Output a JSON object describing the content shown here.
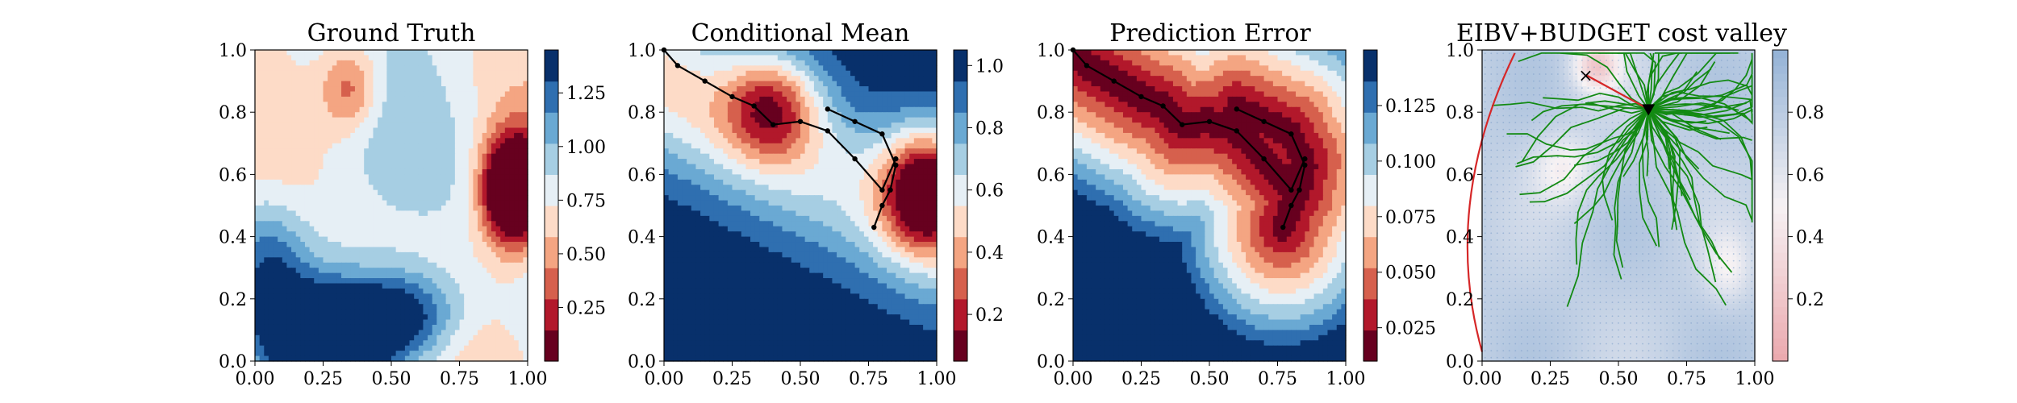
{
  "chart_data": [
    {
      "type": "heatmap",
      "title": "Ground Truth",
      "xlim": [
        0,
        1
      ],
      "ylim": [
        0,
        1
      ],
      "x_ticks": [
        "0.00",
        "0.25",
        "0.50",
        "0.75",
        "1.00"
      ],
      "y_ticks": [
        "0.0",
        "0.2",
        "0.4",
        "0.6",
        "0.8",
        "1.0"
      ],
      "colormap": "RdBu",
      "colorbar": {
        "range": [
          0.0,
          1.45
        ],
        "ticks": [
          "0.25",
          "0.50",
          "0.75",
          "1.00",
          "1.25"
        ]
      },
      "features": [
        {
          "kind": "low",
          "x": 0.95,
          "y": 0.55,
          "sx": 0.08,
          "sy": 0.12,
          "amp": -1.0
        },
        {
          "kind": "low",
          "x": 0.35,
          "y": 0.88,
          "sx": 0.08,
          "sy": 0.1,
          "amp": -0.35
        },
        {
          "kind": "high",
          "x": 0.25,
          "y": 0.08,
          "sx": 0.18,
          "sy": 0.12,
          "amp": 0.55
        },
        {
          "kind": "high",
          "x": 0.55,
          "y": 0.15,
          "sx": 0.15,
          "sy": 0.1,
          "amp": 0.45
        },
        {
          "kind": "high",
          "x": 0.05,
          "y": 0.3,
          "sx": 0.1,
          "sy": 0.15,
          "amp": 0.3
        }
      ]
    },
    {
      "type": "heatmap",
      "title": "Conditional Mean",
      "xlim": [
        0,
        1
      ],
      "ylim": [
        0,
        1
      ],
      "x_ticks": [
        "0.00",
        "0.25",
        "0.50",
        "0.75",
        "1.00"
      ],
      "y_ticks": [
        "0.0",
        "0.2",
        "0.4",
        "0.6",
        "0.8",
        "1.0"
      ],
      "colormap": "RdBu",
      "colorbar": {
        "range": [
          0.05,
          1.05
        ],
        "ticks": [
          "0.2",
          "0.4",
          "0.6",
          "0.8",
          "1.0"
        ]
      },
      "features": [
        {
          "kind": "low",
          "x": 0.97,
          "y": 0.55,
          "sx": 0.12,
          "sy": 0.14,
          "amp": -0.95
        },
        {
          "kind": "low",
          "x": 0.4,
          "y": 0.82,
          "sx": 0.12,
          "sy": 0.12,
          "amp": -0.55
        }
      ],
      "path_a": {
        "x": [
          0.0,
          0.05,
          0.15,
          0.25,
          0.33,
          0.4,
          0.5,
          0.6,
          0.7,
          0.8,
          0.85
        ],
        "y": [
          1.0,
          0.95,
          0.9,
          0.85,
          0.82,
          0.76,
          0.77,
          0.74,
          0.65,
          0.55,
          0.65
        ]
      },
      "path_b": {
        "x": [
          0.6,
          0.7,
          0.8,
          0.85,
          0.83,
          0.8,
          0.77
        ],
        "y": [
          0.81,
          0.77,
          0.73,
          0.63,
          0.55,
          0.5,
          0.43
        ]
      }
    },
    {
      "type": "heatmap",
      "title": "Prediction Error",
      "xlim": [
        0,
        1
      ],
      "ylim": [
        0,
        1
      ],
      "x_ticks": [
        "0.00",
        "0.25",
        "0.50",
        "0.75",
        "1.00"
      ],
      "y_ticks": [
        "0.0",
        "0.2",
        "0.4",
        "0.6",
        "0.8",
        "1.0"
      ],
      "colormap": "RdBu",
      "colorbar": {
        "range": [
          0.01,
          0.15
        ],
        "ticks": [
          "0.025",
          "0.050",
          "0.075",
          "0.100",
          "0.125"
        ]
      },
      "path_a": {
        "x": [
          0.0,
          0.05,
          0.15,
          0.25,
          0.33,
          0.4,
          0.5,
          0.6,
          0.7,
          0.8,
          0.85
        ],
        "y": [
          1.0,
          0.95,
          0.9,
          0.85,
          0.82,
          0.76,
          0.77,
          0.74,
          0.65,
          0.55,
          0.65
        ]
      },
      "path_b": {
        "x": [
          0.6,
          0.7,
          0.8,
          0.85,
          0.83,
          0.8,
          0.77
        ],
        "y": [
          0.81,
          0.77,
          0.73,
          0.63,
          0.55,
          0.5,
          0.43
        ]
      }
    },
    {
      "type": "heatmap",
      "title": "EIBV+BUDGET cost valley",
      "xlim": [
        0,
        1
      ],
      "ylim": [
        0,
        1
      ],
      "x_ticks": [
        "0.00",
        "0.25",
        "0.50",
        "0.75",
        "1.00"
      ],
      "y_ticks": [
        "0.0",
        "0.2",
        "0.4",
        "0.6",
        "0.8",
        "1.0"
      ],
      "colormap": "RdBu",
      "colorbar": {
        "range": [
          0.0,
          1.0
        ],
        "ticks": [
          "0.2",
          "0.4",
          "0.6",
          "0.8"
        ]
      },
      "features": [
        {
          "kind": "high",
          "x": 0.42,
          "y": 0.95,
          "sx": 0.06,
          "sy": 0.06,
          "amp": 0.55
        },
        {
          "kind": "high",
          "x": 0.3,
          "y": 0.62,
          "sx": 0.08,
          "sy": 0.08,
          "amp": 0.3
        },
        {
          "kind": "high",
          "x": 0.9,
          "y": 0.3,
          "sx": 0.06,
          "sy": 0.08,
          "amp": 0.25
        }
      ],
      "tree_root": {
        "x": 0.61,
        "y": 0.81
      },
      "start_marker": {
        "x": 0.38,
        "y": 0.92
      },
      "tree_branches": 70,
      "boundary_ellipse": {
        "cx": 0.0,
        "cy": 0.3,
        "rx": 0.55,
        "ry": 1.05
      }
    }
  ]
}
